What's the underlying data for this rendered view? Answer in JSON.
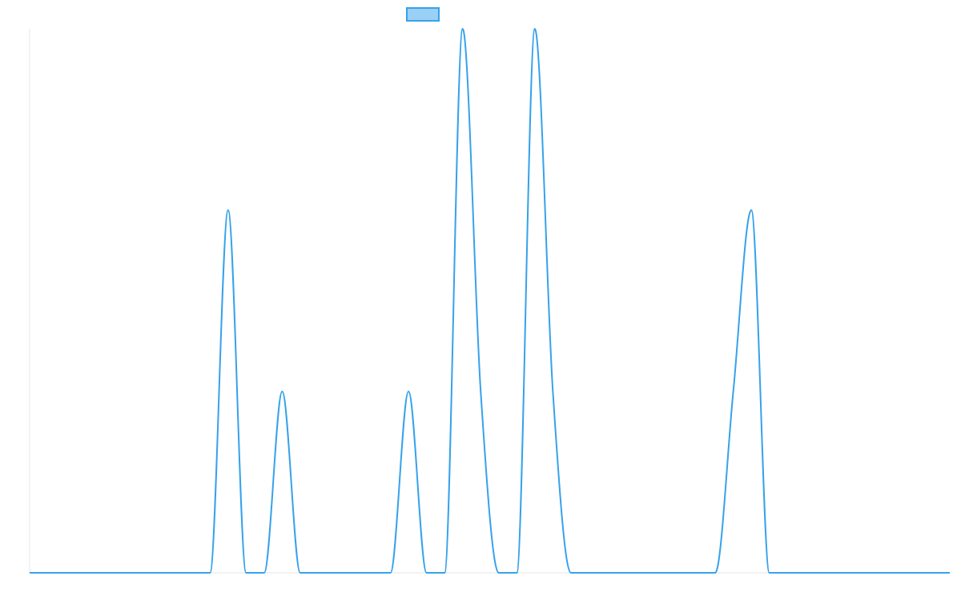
{
  "chart_data": {
    "type": "line",
    "title": "",
    "xlabel": "",
    "ylabel": "",
    "legend": {
      "placement": "top-center",
      "entries": [
        {
          "name": ""
        }
      ]
    },
    "grid": false,
    "xlim": [
      0,
      51
    ],
    "ylim": [
      0,
      3
    ],
    "series": [
      {
        "name": "",
        "color": "#36a2eb",
        "fill_color": "#9ad0f5",
        "x": [
          0,
          10,
          11,
          12,
          13,
          14,
          15,
          16,
          20,
          21,
          22,
          23,
          24,
          25,
          26,
          27,
          28,
          29,
          30,
          31,
          32,
          38,
          39,
          40,
          41,
          42,
          51
        ],
        "y": [
          0,
          0,
          2,
          0,
          0,
          1,
          0,
          0,
          0,
          1,
          0,
          0,
          3,
          1,
          0,
          0,
          3,
          1,
          0,
          0,
          0,
          0,
          1,
          2,
          0,
          0,
          0
        ]
      }
    ]
  }
}
